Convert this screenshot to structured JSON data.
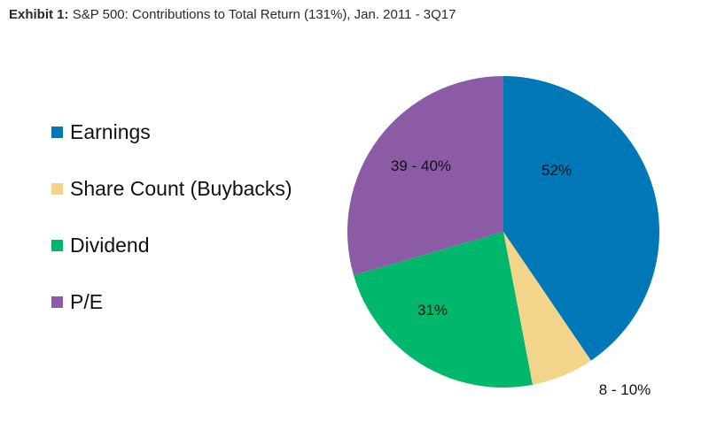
{
  "header": {
    "prefix": "Exhibit 1:",
    "title": "S&P 500: Contributions to Total Return (131%), Jan. 2011 - 3Q17"
  },
  "chart_data": {
    "type": "pie",
    "title": "S&P 500: Contributions to Total Return (131%), Jan. 2011 - 3Q17",
    "legend_placement": "left",
    "slices": [
      {
        "name": "Earnings",
        "label": "52%",
        "value": 40.5,
        "color": "#0077B6"
      },
      {
        "name": "Share Count (Buybacks)",
        "label": "8 - 10%",
        "value": 6.5,
        "color": "#F2D58A"
      },
      {
        "name": "Dividend",
        "label": "31%",
        "value": 23.5,
        "color": "#00B76B"
      },
      {
        "name": "P/E",
        "label": "39 - 40%",
        "value": 29.5,
        "color": "#8B5BA5"
      }
    ]
  }
}
